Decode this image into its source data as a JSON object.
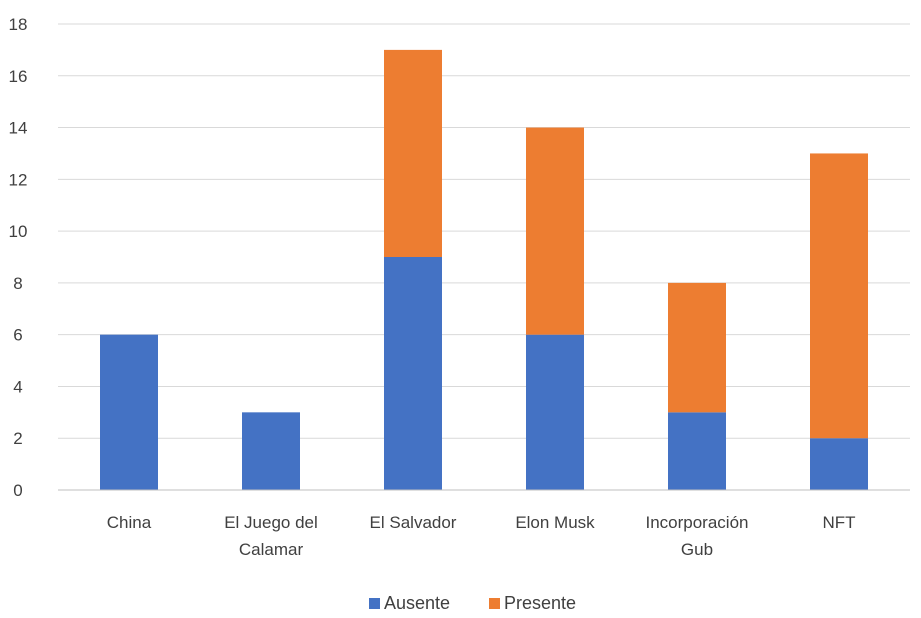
{
  "chart_data": {
    "type": "bar",
    "stacked": true,
    "categories": [
      "China",
      "El Juego del Calamar",
      "El Salvador",
      "Elon Musk",
      "Incorporación Gub",
      "NFT"
    ],
    "category_lines": [
      [
        "China"
      ],
      [
        "El Juego del",
        "Calamar"
      ],
      [
        "El Salvador"
      ],
      [
        "Elon Musk"
      ],
      [
        "Incorporación",
        "Gub"
      ],
      [
        "NFT"
      ]
    ],
    "series": [
      {
        "name": "Ausente",
        "values": [
          6,
          3,
          9,
          6,
          3,
          2
        ],
        "color": "#4472c4"
      },
      {
        "name": "Presente",
        "values": [
          0,
          0,
          8,
          8,
          5,
          11
        ],
        "color": "#ed7d31"
      }
    ],
    "ylim": [
      0,
      18
    ],
    "yticks": [
      0,
      2,
      4,
      6,
      8,
      10,
      12,
      14,
      16,
      18
    ],
    "title": "",
    "xlabel": "",
    "ylabel": "",
    "grid": true,
    "legend_position": "bottom"
  }
}
